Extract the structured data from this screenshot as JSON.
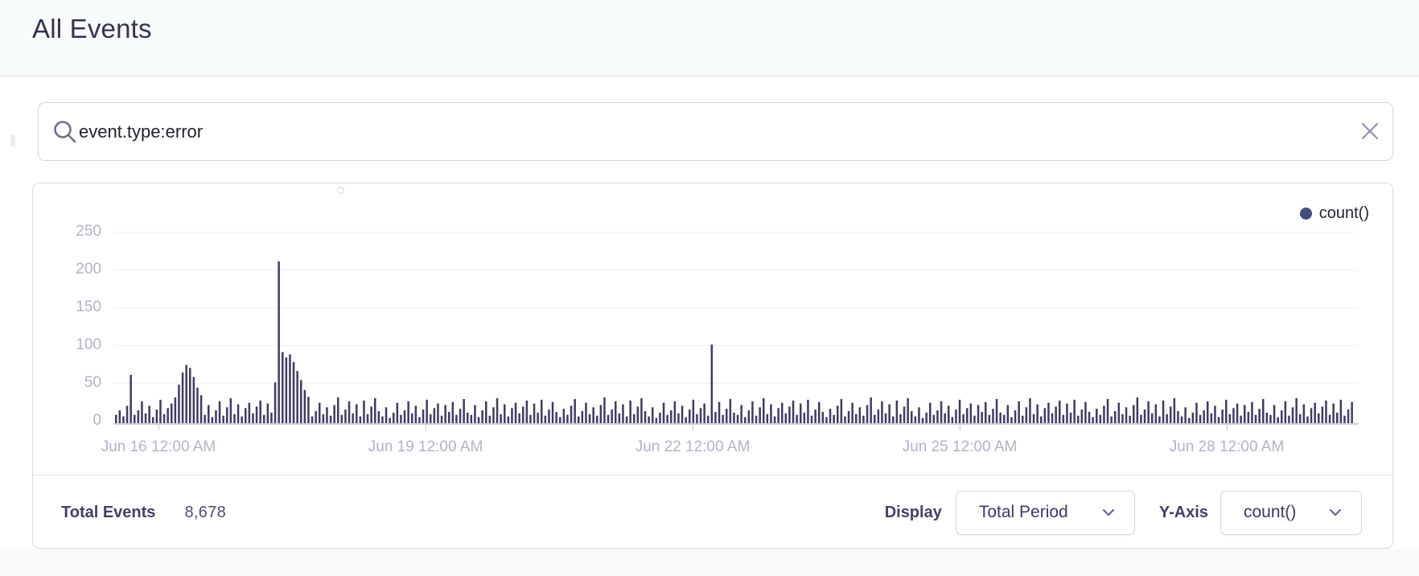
{
  "header": {
    "title": "All Events"
  },
  "search": {
    "value": "event.type:error",
    "search_icon": "magnifier",
    "clear_icon": "x"
  },
  "chart": {
    "legend_label": "count()",
    "colors": {
      "bar": "#3e3b64",
      "legend_dot": "#454c7c",
      "axis_label": "#b1b4c6",
      "gridline": "#edf2f1"
    }
  },
  "chart_data": {
    "type": "bar",
    "title": "",
    "x_unit": "hour",
    "x_tick_labels": [
      "Jun 16 12:00 AM",
      "Jun 19 12:00 AM",
      "Jun 22 12:00 AM",
      "Jun 25 12:00 AM",
      "Jun 28 12:00 AM"
    ],
    "y_ticks": [
      250,
      200,
      150,
      100,
      50,
      0
    ],
    "ylim": [
      0,
      265
    ],
    "grid": true,
    "legend_position": "top-right",
    "series": [
      {
        "name": "count()",
        "values": [
          12,
          18,
          10,
          24,
          65,
          12,
          18,
          30,
          14,
          24,
          9,
          19,
          32,
          13,
          21,
          27,
          35,
          52,
          68,
          78,
          74,
          62,
          48,
          38,
          12,
          25,
          9,
          18,
          30,
          11,
          22,
          34,
          13,
          26,
          10,
          21,
          28,
          14,
          23,
          31,
          12,
          27,
          15,
          55,
          215,
          95,
          88,
          92,
          82,
          70,
          58,
          45,
          36,
          10,
          17,
          28,
          13,
          22,
          11,
          25,
          35,
          12,
          19,
          30,
          14,
          26,
          10,
          31,
          13,
          23,
          34,
          17,
          10,
          22,
          8,
          15,
          28,
          12,
          18,
          30,
          14,
          24,
          9,
          19,
          32,
          13,
          21,
          27,
          11,
          25,
          16,
          29,
          12,
          20,
          33,
          15,
          12,
          25,
          9,
          18,
          30,
          11,
          22,
          34,
          13,
          26,
          10,
          21,
          28,
          14,
          23,
          31,
          12,
          27,
          15,
          32,
          11,
          19,
          29,
          16,
          9,
          20,
          12,
          24,
          33,
          10,
          17,
          28,
          13,
          22,
          11,
          25,
          35,
          12,
          19,
          30,
          14,
          26,
          10,
          31,
          13,
          23,
          34,
          17,
          10,
          22,
          8,
          15,
          28,
          12,
          18,
          30,
          14,
          24,
          9,
          19,
          32,
          13,
          21,
          27,
          11,
          105,
          16,
          29,
          12,
          20,
          33,
          15,
          12,
          25,
          9,
          18,
          30,
          11,
          22,
          34,
          13,
          26,
          10,
          21,
          28,
          14,
          23,
          31,
          12,
          27,
          15,
          32,
          11,
          19,
          29,
          16,
          9,
          20,
          12,
          24,
          33,
          10,
          17,
          28,
          13,
          22,
          11,
          25,
          35,
          12,
          19,
          30,
          14,
          26,
          10,
          31,
          13,
          23,
          34,
          17,
          10,
          22,
          8,
          15,
          28,
          12,
          18,
          30,
          14,
          24,
          9,
          19,
          32,
          13,
          21,
          27,
          11,
          25,
          16,
          29,
          12,
          20,
          33,
          15,
          12,
          25,
          9,
          18,
          30,
          11,
          22,
          34,
          13,
          26,
          10,
          21,
          28,
          14,
          23,
          31,
          12,
          27,
          15,
          32,
          11,
          19,
          29,
          16,
          9,
          20,
          12,
          24,
          33,
          10,
          17,
          28,
          13,
          22,
          11,
          25,
          35,
          12,
          19,
          30,
          14,
          26,
          10,
          31,
          13,
          23,
          34,
          17,
          10,
          22,
          8,
          15,
          28,
          12,
          18,
          30,
          14,
          24,
          9,
          19,
          32,
          13,
          21,
          27,
          11,
          25,
          16,
          29,
          12,
          20,
          33,
          15,
          12,
          25,
          9,
          18,
          30,
          11,
          22,
          34,
          13,
          26,
          10,
          21,
          28,
          14,
          23,
          31,
          12,
          27,
          15,
          32,
          11,
          19,
          29
        ]
      }
    ]
  },
  "footer": {
    "total_events_label": "Total Events",
    "total_events_value": "8,678",
    "display_label": "Display",
    "display_value": "Total Period",
    "yaxis_label": "Y-Axis",
    "yaxis_value": "count()"
  }
}
